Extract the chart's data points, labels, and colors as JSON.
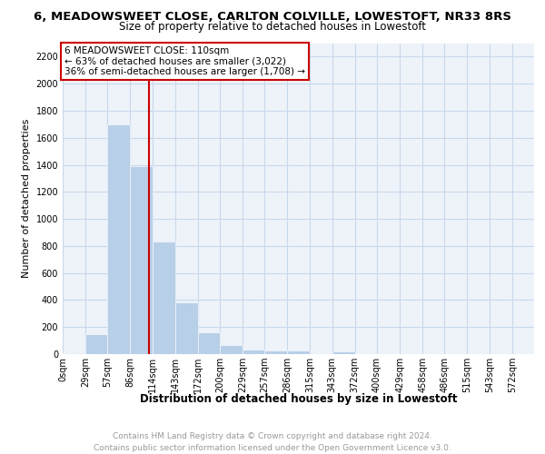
{
  "title1": "6, MEADOWSWEET CLOSE, CARLTON COLVILLE, LOWESTOFT, NR33 8RS",
  "title2": "Size of property relative to detached houses in Lowestoft",
  "xlabel": "Distribution of detached houses by size in Lowestoft",
  "ylabel": "Number of detached properties",
  "footnote": "Contains HM Land Registry data © Crown copyright and database right 2024.\nContains public sector information licensed under the Open Government Licence v3.0.",
  "bar_labels": [
    "0sqm",
    "29sqm",
    "57sqm",
    "86sqm",
    "114sqm",
    "143sqm",
    "172sqm",
    "200sqm",
    "229sqm",
    "257sqm",
    "286sqm",
    "315sqm",
    "343sqm",
    "372sqm",
    "400sqm",
    "429sqm",
    "458sqm",
    "486sqm",
    "515sqm",
    "543sqm",
    "572sqm"
  ],
  "bar_edges": [
    0,
    29,
    57,
    86,
    114,
    143,
    172,
    200,
    229,
    257,
    286,
    315,
    343,
    372,
    400,
    429,
    458,
    486,
    515,
    543,
    572,
    600
  ],
  "bar_values": [
    10,
    150,
    1700,
    1390,
    830,
    380,
    160,
    70,
    35,
    25,
    25,
    0,
    20,
    0,
    0,
    0,
    0,
    0,
    0,
    0,
    0
  ],
  "bar_color": "#b8cfe8",
  "bar_edgecolor": "#b8cfe8",
  "grid_color": "#c8d8ea",
  "bg_color": "#eef3fa",
  "property_line_x": 110,
  "property_line_label": "6 MEADOWSWEET CLOSE: 110sqm",
  "annotation_line1": "← 63% of detached houses are smaller (3,022)",
  "annotation_line2": "36% of semi-detached houses are larger (1,708) →",
  "annotation_box_color": "#cc0000",
  "ylim": [
    0,
    2300
  ],
  "yticks": [
    0,
    200,
    400,
    600,
    800,
    1000,
    1200,
    1400,
    1600,
    1800,
    2000,
    2200
  ],
  "title1_fontsize": 9.5,
  "title2_fontsize": 8.5,
  "axis_label_fontsize": 8,
  "tick_fontsize": 7,
  "footnote_fontsize": 6.5,
  "annot_fontsize": 7.5
}
